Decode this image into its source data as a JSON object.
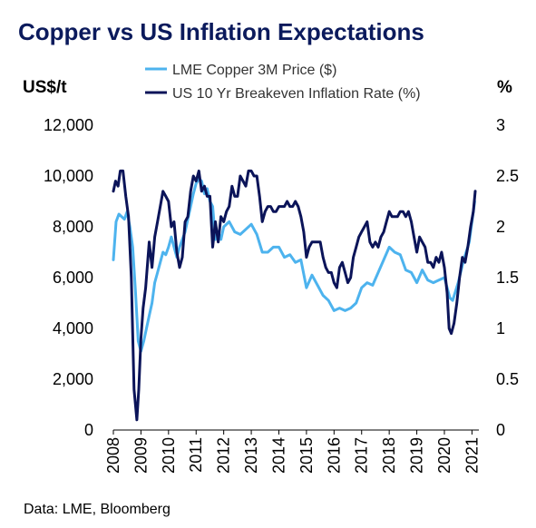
{
  "chart_data": {
    "type": "line",
    "title": "Copper vs US Inflation Expectations",
    "source": "Data: LME, Bloomberg",
    "y_left_label": "US$/t",
    "y_right_label": "%",
    "y_left_ticks": [
      "0",
      "2,000",
      "4,000",
      "6,000",
      "8,000",
      "10,000",
      "12,000"
    ],
    "y_right_ticks": [
      "0",
      "0.5",
      "1",
      "1.5",
      "2",
      "2.5",
      "3"
    ],
    "x_ticks": [
      "2008",
      "2009",
      "2010",
      "2011",
      "2012",
      "2013",
      "2014",
      "2015",
      "2016",
      "2017",
      "2018",
      "2019",
      "2020",
      "2021"
    ],
    "y_left_lim": [
      0,
      12000
    ],
    "y_right_lim": [
      0,
      3
    ],
    "x_lim": [
      2008,
      2021.25
    ],
    "legend_position": "top",
    "series": [
      {
        "name": "LME Copper 3M Price ($)",
        "axis": "left",
        "color": "#4db3ee",
        "x": [
          2008.0,
          2008.1,
          2008.2,
          2008.3,
          2008.4,
          2008.5,
          2008.6,
          2008.7,
          2008.8,
          2008.9,
          2009.0,
          2009.1,
          2009.2,
          2009.3,
          2009.4,
          2009.5,
          2009.6,
          2009.7,
          2009.8,
          2009.9,
          2010.0,
          2010.1,
          2010.2,
          2010.3,
          2010.4,
          2010.5,
          2010.6,
          2010.7,
          2010.8,
          2010.9,
          2011.0,
          2011.1,
          2011.2,
          2011.3,
          2011.4,
          2011.5,
          2011.6,
          2011.7,
          2011.8,
          2011.9,
          2012.0,
          2012.2,
          2012.4,
          2012.6,
          2012.8,
          2013.0,
          2013.2,
          2013.4,
          2013.6,
          2013.8,
          2014.0,
          2014.2,
          2014.4,
          2014.6,
          2014.8,
          2015.0,
          2015.2,
          2015.4,
          2015.6,
          2015.8,
          2016.0,
          2016.2,
          2016.4,
          2016.6,
          2016.8,
          2017.0,
          2017.2,
          2017.4,
          2017.6,
          2017.8,
          2018.0,
          2018.2,
          2018.4,
          2018.6,
          2018.8,
          2019.0,
          2019.2,
          2019.4,
          2019.6,
          2019.8,
          2020.0,
          2020.2,
          2020.3,
          2020.5,
          2020.7,
          2020.9,
          2021.1
        ],
        "values": [
          6700,
          8200,
          8500,
          8400,
          8300,
          8600,
          8000,
          7200,
          5500,
          3500,
          3100,
          3500,
          4000,
          4500,
          5000,
          5800,
          6200,
          6600,
          7000,
          6900,
          7200,
          7600,
          7200,
          6800,
          7200,
          7500,
          7800,
          8300,
          8800,
          9300,
          9700,
          9900,
          9800,
          9300,
          9500,
          9000,
          8800,
          7500,
          7800,
          7500,
          8000,
          8200,
          7800,
          7700,
          7900,
          8100,
          7700,
          7000,
          7000,
          7200,
          7200,
          6800,
          6900,
          6600,
          6700,
          5600,
          6100,
          5700,
          5300,
          5100,
          4700,
          4800,
          4700,
          4800,
          5000,
          5600,
          5800,
          5700,
          6200,
          6700,
          7200,
          7000,
          6900,
          6300,
          6200,
          5800,
          6300,
          5900,
          5800,
          5900,
          6000,
          5200,
          5100,
          5800,
          6700,
          7400,
          9000
        ]
      },
      {
        "name": "US 10 Yr Breakeven Inflation Rate (%)",
        "axis": "right",
        "color": "#0b1459",
        "x": [
          2008.0,
          2008.08,
          2008.17,
          2008.25,
          2008.35,
          2008.45,
          2008.55,
          2008.65,
          2008.75,
          2008.85,
          2008.92,
          2009.0,
          2009.08,
          2009.17,
          2009.3,
          2009.4,
          2009.5,
          2009.6,
          2009.7,
          2009.8,
          2009.9,
          2010.0,
          2010.1,
          2010.2,
          2010.3,
          2010.4,
          2010.5,
          2010.6,
          2010.7,
          2010.8,
          2010.9,
          2011.0,
          2011.1,
          2011.2,
          2011.3,
          2011.4,
          2011.5,
          2011.6,
          2011.7,
          2011.8,
          2011.9,
          2012.0,
          2012.1,
          2012.2,
          2012.3,
          2012.4,
          2012.5,
          2012.6,
          2012.7,
          2012.8,
          2012.9,
          2013.0,
          2013.1,
          2013.2,
          2013.3,
          2013.4,
          2013.5,
          2013.6,
          2013.7,
          2013.8,
          2013.9,
          2014.0,
          2014.1,
          2014.2,
          2014.3,
          2014.4,
          2014.5,
          2014.6,
          2014.7,
          2014.8,
          2014.9,
          2015.0,
          2015.1,
          2015.2,
          2015.3,
          2015.4,
          2015.5,
          2015.6,
          2015.7,
          2015.8,
          2015.9,
          2016.0,
          2016.1,
          2016.2,
          2016.3,
          2016.4,
          2016.5,
          2016.6,
          2016.7,
          2016.8,
          2016.9,
          2017.0,
          2017.1,
          2017.2,
          2017.3,
          2017.4,
          2017.5,
          2017.6,
          2017.7,
          2017.8,
          2017.9,
          2018.0,
          2018.1,
          2018.2,
          2018.3,
          2018.4,
          2018.5,
          2018.6,
          2018.7,
          2018.8,
          2018.9,
          2019.0,
          2019.1,
          2019.2,
          2019.3,
          2019.4,
          2019.5,
          2019.6,
          2019.7,
          2019.8,
          2019.9,
          2020.0,
          2020.1,
          2020.17,
          2020.25,
          2020.35,
          2020.45,
          2020.55,
          2020.65,
          2020.75,
          2020.85,
          2020.95,
          2021.05,
          2021.12
        ],
        "values": [
          2.35,
          2.45,
          2.4,
          2.55,
          2.55,
          2.3,
          2.1,
          1.5,
          0.4,
          0.1,
          0.4,
          0.9,
          1.2,
          1.4,
          1.85,
          1.6,
          1.9,
          2.05,
          2.2,
          2.35,
          2.3,
          2.25,
          2.0,
          2.05,
          1.75,
          1.6,
          1.7,
          2.05,
          2.1,
          2.35,
          2.5,
          2.45,
          2.55,
          2.35,
          2.4,
          2.3,
          2.3,
          1.8,
          2.05,
          1.85,
          2.1,
          2.05,
          2.15,
          2.2,
          2.4,
          2.3,
          2.3,
          2.5,
          2.45,
          2.4,
          2.55,
          2.55,
          2.5,
          2.5,
          2.3,
          2.05,
          2.15,
          2.2,
          2.2,
          2.15,
          2.15,
          2.2,
          2.2,
          2.2,
          2.25,
          2.2,
          2.2,
          2.25,
          2.2,
          2.1,
          1.95,
          1.7,
          1.8,
          1.85,
          1.85,
          1.85,
          1.85,
          1.7,
          1.6,
          1.55,
          1.55,
          1.45,
          1.4,
          1.6,
          1.65,
          1.55,
          1.45,
          1.5,
          1.7,
          1.8,
          1.9,
          1.95,
          2.0,
          2.05,
          1.85,
          1.8,
          1.85,
          1.8,
          1.9,
          1.95,
          2.05,
          2.15,
          2.1,
          2.1,
          2.1,
          2.15,
          2.15,
          2.1,
          2.15,
          2.05,
          1.9,
          1.75,
          1.9,
          1.85,
          1.8,
          1.65,
          1.65,
          1.6,
          1.7,
          1.65,
          1.75,
          1.6,
          1.35,
          1.0,
          0.95,
          1.05,
          1.25,
          1.5,
          1.7,
          1.65,
          1.8,
          2.0,
          2.15,
          2.35
        ]
      }
    ]
  }
}
